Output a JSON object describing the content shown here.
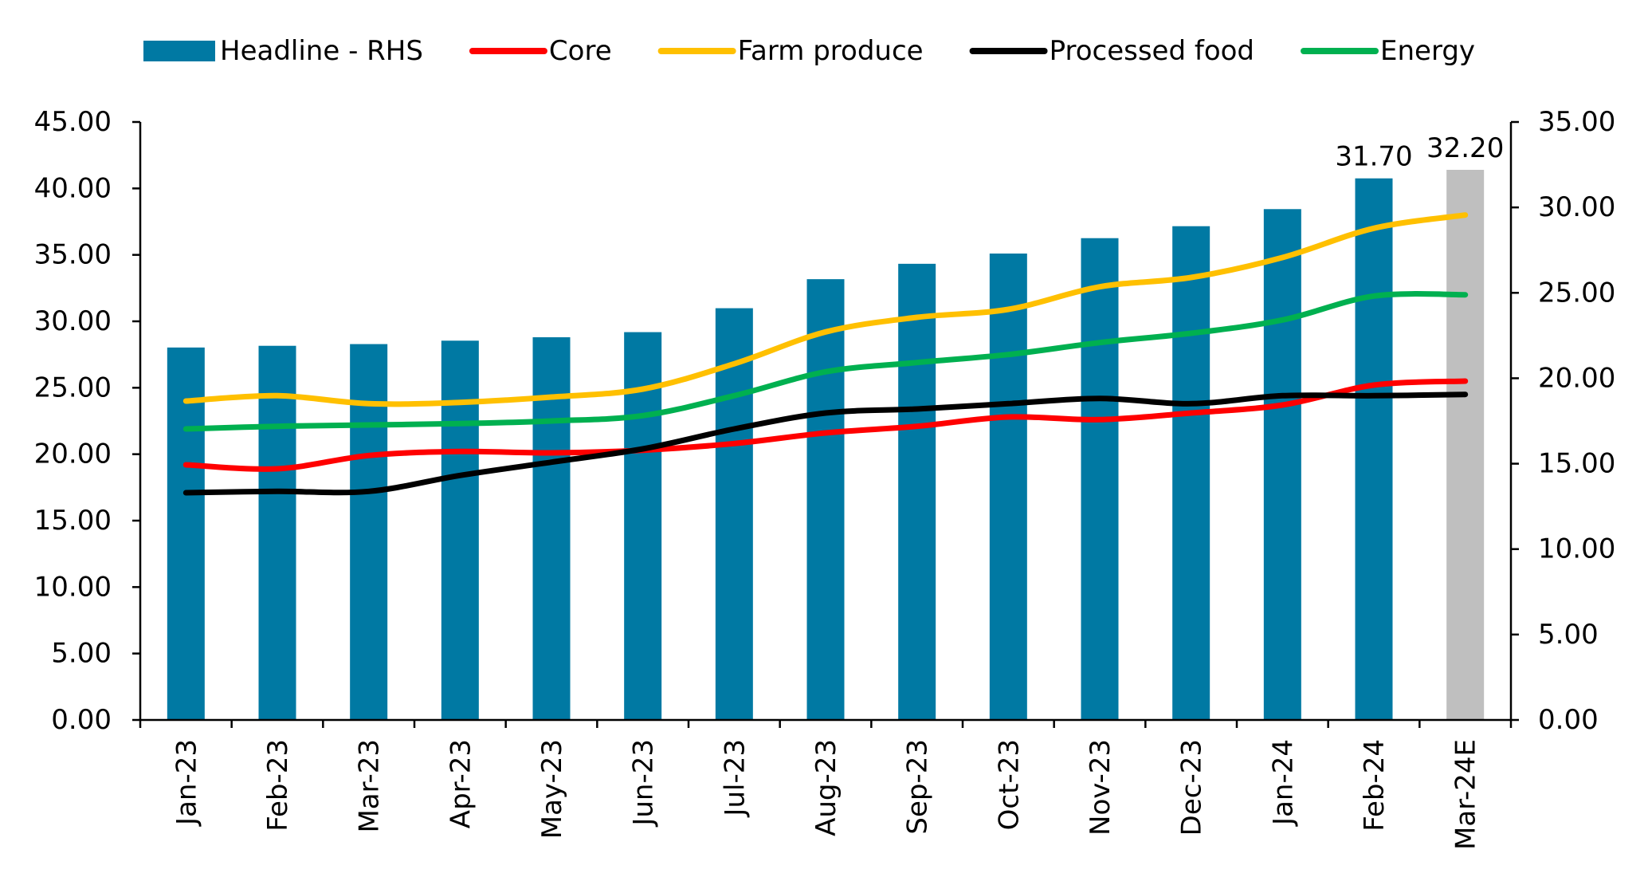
{
  "chart_data": {
    "type": "bar",
    "categories": [
      "Jan-23",
      "Feb-23",
      "Mar-23",
      "Apr-23",
      "May-23",
      "Jun-23",
      "Jul-23",
      "Aug-23",
      "Sep-23",
      "Oct-23",
      "Nov-23",
      "Dec-23",
      "Jan-24",
      "Feb-24",
      "Mar-24E"
    ],
    "y_left": {
      "ylim": [
        0,
        45
      ],
      "ticks": [
        "0.00",
        "5.00",
        "10.00",
        "15.00",
        "20.00",
        "25.00",
        "30.00",
        "35.00",
        "40.00",
        "45.00"
      ]
    },
    "y_right": {
      "ylim": [
        0,
        35
      ],
      "ticks": [
        "0.00",
        "5.00",
        "10.00",
        "15.00",
        "20.00",
        "25.00",
        "30.00",
        "35.00"
      ]
    },
    "bar_series": {
      "name": "Headline - RHS",
      "axis": "right",
      "color": "#0079A3",
      "highlight_color": "#BFBFBF",
      "highlight_index": 14,
      "values": [
        21.8,
        21.9,
        22.0,
        22.2,
        22.4,
        22.7,
        24.1,
        25.8,
        26.7,
        27.3,
        28.2,
        28.9,
        29.9,
        31.7,
        32.2
      ],
      "data_labels": [
        {
          "index": 13,
          "text": "31.70"
        },
        {
          "index": 14,
          "text": "32.20"
        }
      ]
    },
    "series": [
      {
        "name": "Core",
        "axis": "left",
        "color": "#FF0000",
        "values": [
          19.2,
          18.9,
          19.9,
          20.2,
          20.1,
          20.3,
          20.8,
          21.6,
          22.1,
          22.8,
          22.6,
          23.1,
          23.7,
          25.2,
          25.5
        ]
      },
      {
        "name": "Farm produce",
        "axis": "left",
        "color": "#FFC000",
        "values": [
          24.0,
          24.4,
          23.8,
          23.9,
          24.3,
          24.9,
          26.8,
          29.2,
          30.3,
          30.9,
          32.6,
          33.3,
          34.8,
          37.0,
          38.0
        ]
      },
      {
        "name": "Processed food",
        "axis": "left",
        "color": "#000000",
        "values": [
          17.1,
          17.2,
          17.2,
          18.4,
          19.4,
          20.4,
          21.9,
          23.1,
          23.4,
          23.8,
          24.2,
          23.8,
          24.4,
          24.4,
          24.5
        ]
      },
      {
        "name": "Energy",
        "axis": "left",
        "color": "#00B050",
        "values": [
          21.9,
          22.1,
          22.2,
          22.3,
          22.5,
          22.9,
          24.4,
          26.2,
          26.9,
          27.5,
          28.4,
          29.1,
          30.1,
          31.9,
          32.0
        ]
      }
    ],
    "legend_position": "top",
    "grid": false
  }
}
